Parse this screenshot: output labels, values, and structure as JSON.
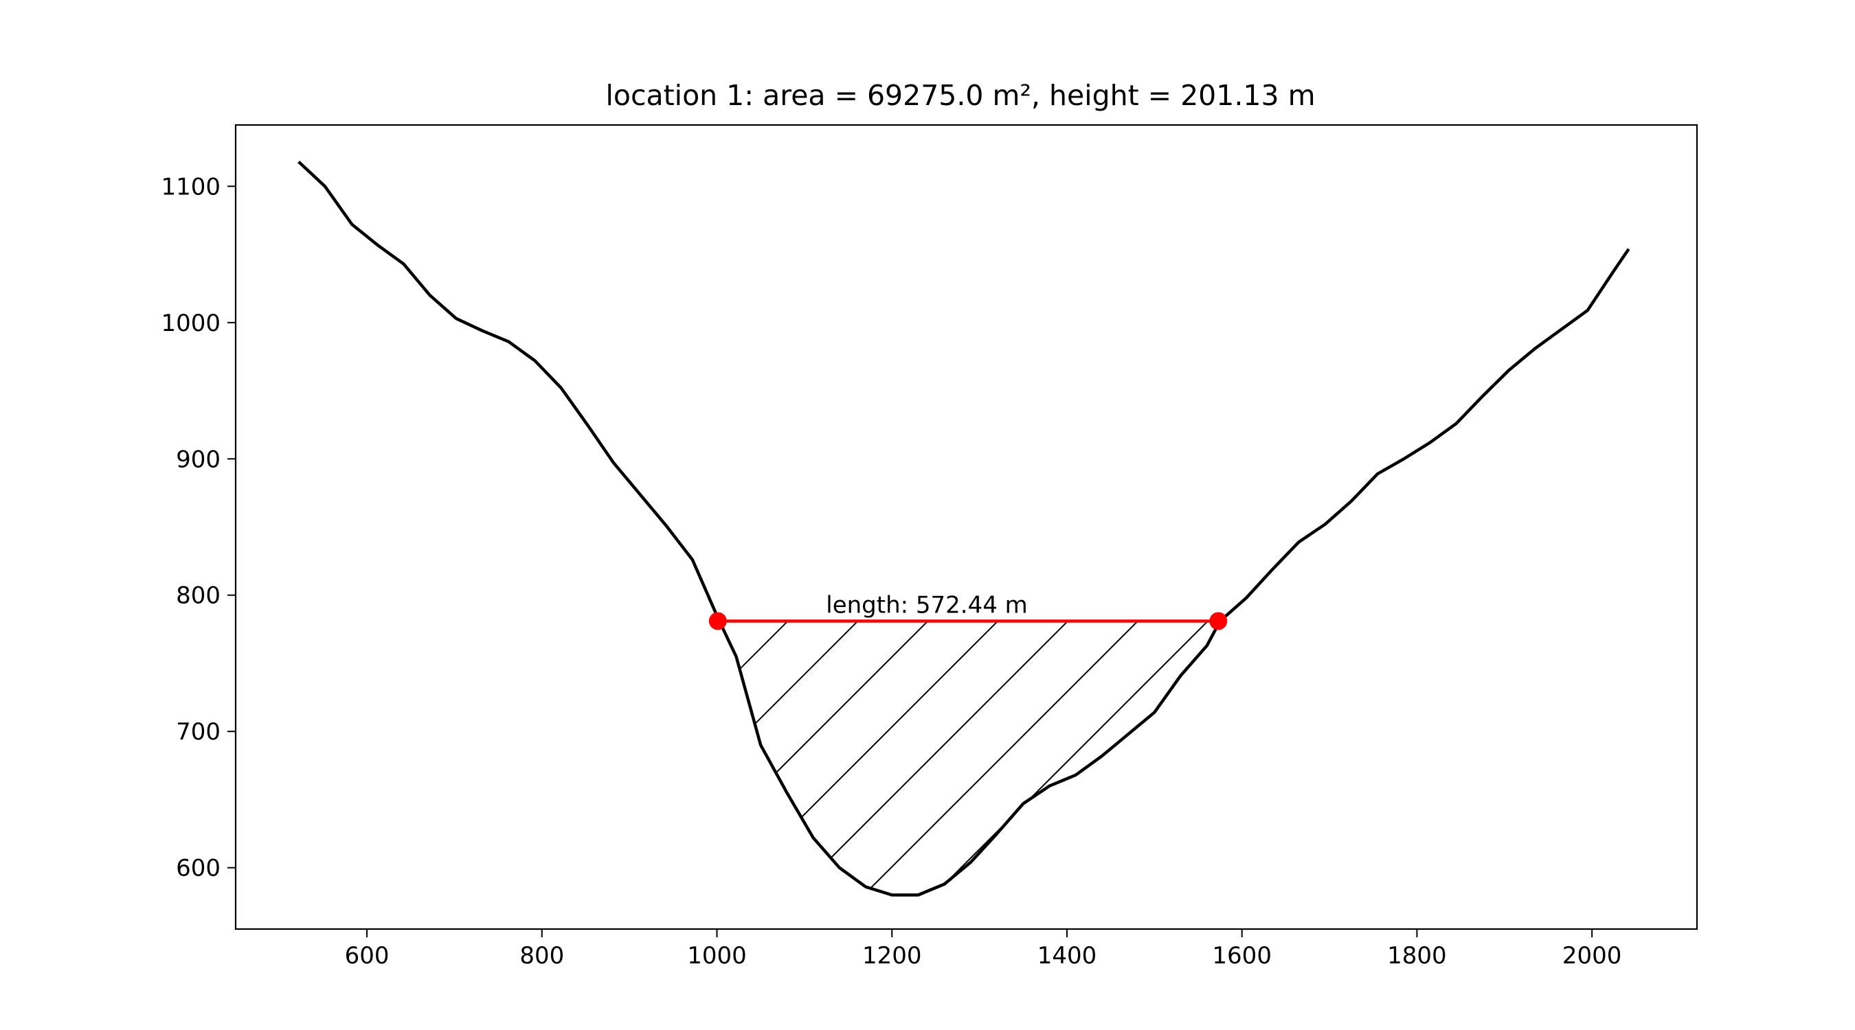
{
  "chart_data": {
    "type": "line",
    "title": "location 1: area = 69275.0 m², height = 201.13 m",
    "xlabel": "",
    "ylabel": "",
    "xlim": [
      450,
      2120
    ],
    "ylim": [
      555,
      1145
    ],
    "xticks": [
      600,
      800,
      1000,
      1200,
      1400,
      1600,
      1800,
      2000
    ],
    "yticks": [
      600,
      700,
      800,
      900,
      1000,
      1100
    ],
    "grid": false,
    "series": [
      {
        "color": "#000000",
        "x": [
          522,
          552,
          583,
          612,
          642,
          672,
          702,
          732,
          762,
          792,
          822,
          852,
          882,
          912,
          942,
          972,
          1002,
          1022,
          1050,
          1080,
          1110,
          1140,
          1170,
          1200,
          1230,
          1260,
          1290,
          1320,
          1350,
          1380,
          1410,
          1440,
          1470,
          1500,
          1530,
          1560,
          1575,
          1605,
          1635,
          1665,
          1695,
          1725,
          1755,
          1785,
          1815,
          1845,
          1875,
          1905,
          1935,
          1965,
          1995,
          2025,
          2042
        ],
        "y": [
          1118,
          1100,
          1072,
          1057,
          1043,
          1020,
          1003,
          994,
          986,
          972,
          952,
          925,
          897,
          874,
          851,
          826,
          782,
          755,
          690,
          655,
          622,
          600,
          586,
          580,
          580,
          588,
          604,
          625,
          647,
          660,
          668,
          682,
          698,
          714,
          741,
          763,
          781,
          798,
          819,
          839,
          852,
          869,
          889,
          900,
          912,
          926,
          946,
          965,
          981,
          995,
          1009,
          1038,
          1054
        ]
      }
    ],
    "waterline": {
      "color": "#ff0000",
      "x": [
        1001,
        1573
      ],
      "y": [
        781,
        781
      ],
      "label": "length: 572.44 m"
    },
    "hatch": {
      "color": "#000000",
      "spacing_data": 80
    }
  }
}
